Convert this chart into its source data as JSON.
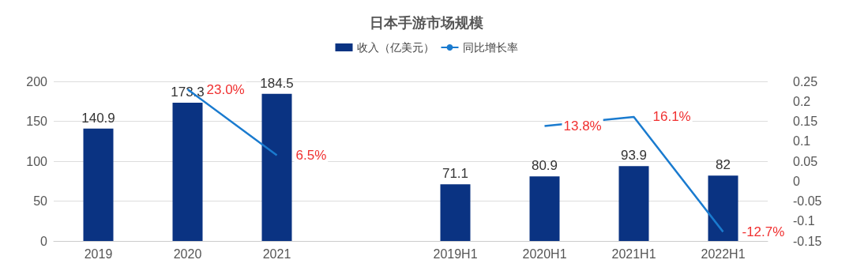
{
  "chart_data": {
    "type": "bar",
    "title": "日本手游市场规模",
    "categories": [
      "2019",
      "2020",
      "2021",
      null,
      "2019H1",
      "2020H1",
      "2021H1",
      "2022H1"
    ],
    "series": [
      {
        "name": "收入（亿美元）",
        "color": "#0a3382",
        "values": [
          140.9,
          173.3,
          184.5,
          null,
          71.1,
          80.9,
          93.9,
          82
        ]
      },
      {
        "name": "同比增长率",
        "type": "line",
        "axis": "y2",
        "color": "#1a7bcf",
        "values": [
          null,
          0.23,
          0.065,
          null,
          null,
          0.138,
          0.161,
          -0.127
        ],
        "value_labels": [
          null,
          "23.0%",
          "6.5%",
          null,
          null,
          "13.8%",
          "16.1%",
          "-12.7%"
        ]
      }
    ],
    "data_labels": true,
    "ylim": [
      0,
      200
    ],
    "yticks": [
      0,
      50,
      100,
      150,
      200
    ],
    "y2lim": [
      -0.15,
      0.25
    ],
    "y2ticks": [
      -0.15,
      -0.1,
      -0.05,
      0,
      0.05,
      0.1,
      0.15,
      0.2,
      0.25
    ],
    "grid": "y",
    "legend": "top",
    "marker": "none"
  }
}
